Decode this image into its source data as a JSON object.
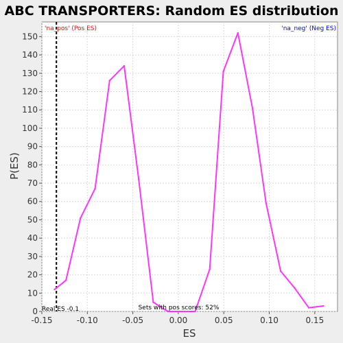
{
  "chart_data": {
    "type": "line",
    "title": "ABC TRANSPORTERS: Random ES distribution",
    "xlabel": "ES",
    "ylabel": "P(ES)",
    "xlim": [
      -0.15,
      0.175
    ],
    "ylim": [
      0,
      158
    ],
    "x_ticks": [
      -0.15,
      -0.1,
      -0.05,
      0.0,
      0.05,
      0.1,
      0.15
    ],
    "x_tick_labels": [
      "-0.15",
      "-0.10",
      "-0.05",
      "0.00",
      "0.05",
      "0.10",
      "0.15"
    ],
    "y_ticks": [
      0,
      10,
      20,
      30,
      40,
      50,
      60,
      70,
      80,
      90,
      100,
      110,
      120,
      130,
      140,
      150
    ],
    "grid": true,
    "series": [
      {
        "color": "#ff33ff",
        "x": [
          -0.136,
          -0.1235,
          -0.1075,
          -0.0915,
          -0.0755,
          -0.0595,
          -0.0435,
          -0.0275,
          -0.0115,
          0.0045,
          0.0185,
          0.0345,
          0.0495,
          0.0655,
          0.0815,
          0.0965,
          0.1125,
          0.1275,
          0.1435,
          0.1595
        ],
        "y": [
          12,
          17,
          51,
          67,
          126,
          134,
          72,
          5,
          0,
          0,
          0,
          23,
          131,
          152,
          111,
          59,
          22,
          13,
          2,
          3
        ]
      }
    ],
    "vertical_line": {
      "x": -0.134,
      "label": "Real ES -0.1",
      "color": "#000000",
      "style": "dashed"
    },
    "annotations": {
      "pos_label": "'na_pos' (Pos ES)",
      "pos_color": "#ff0000",
      "neg_label": "'na_neg' (Neg ES)",
      "neg_color": "#0000ff",
      "footer": "Sets with pos scores: 52%"
    },
    "background_color": "#ffffff",
    "grid_color": "#d9d9d9"
  }
}
